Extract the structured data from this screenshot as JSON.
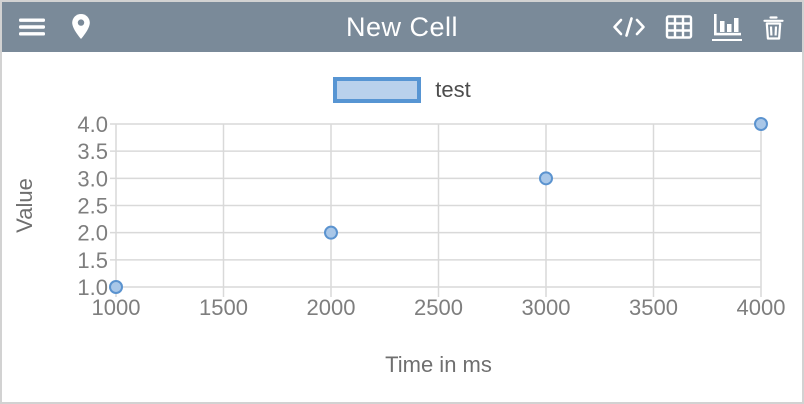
{
  "header": {
    "title": "New Cell",
    "left_icons": [
      "menu-icon",
      "location-pin-icon"
    ],
    "right_icons": [
      "code-icon",
      "table-icon",
      "chart-icon",
      "trash-icon"
    ],
    "active_icon": "chart-icon"
  },
  "legend": {
    "label": "test"
  },
  "colors": {
    "header_bg": "#7a8a99",
    "card_border": "#d2d2d2",
    "grid": "#d9d9d9",
    "tick_text": "#7e7e7e",
    "axis_label_text": "#6f6f6f",
    "legend_text": "#4d4d4d",
    "marker_fill": "#a9c7e8",
    "marker_stroke": "#5b93cf",
    "legend_box_fill": "#b9d1ec",
    "legend_box_border": "#5795d3"
  },
  "chart_data": {
    "type": "scatter",
    "series": [
      {
        "name": "test",
        "x": [
          1000,
          2000,
          3000,
          4000
        ],
        "y": [
          1.0,
          2.0,
          3.0,
          4.0
        ]
      }
    ],
    "title": "",
    "xlabel": "Time in ms",
    "ylabel": "Value",
    "xlim": [
      1000,
      4000
    ],
    "ylim": [
      1.0,
      4.0
    ],
    "xticks": [
      1000,
      1500,
      2000,
      2500,
      3000,
      3500,
      4000
    ],
    "yticks": [
      1.0,
      1.5,
      2.0,
      2.5,
      3.0,
      3.5,
      4.0
    ],
    "grid": true,
    "legend_position": "top-center"
  }
}
